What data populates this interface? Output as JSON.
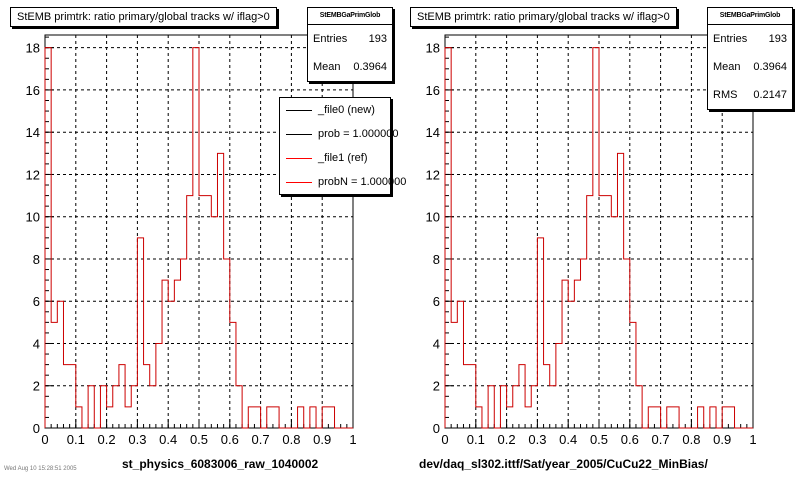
{
  "footer_stamp": "Wed Aug 10 15:28:51 2005",
  "chart_data": [
    {
      "type": "histogram",
      "title": "StEMB primtrk: ratio primary/global tracks w/ iflag>0",
      "xlabel": "st_physics_6083006_raw_1040002",
      "ylabel": "",
      "xlim": [
        0,
        1
      ],
      "ylim": [
        0,
        18.6
      ],
      "grid": true,
      "bin_width": 0.02,
      "x_ticks": [
        "0",
        "0.1",
        "0.2",
        "0.3",
        "0.4",
        "0.5",
        "0.6",
        "0.7",
        "0.8",
        "0.9",
        "1"
      ],
      "y_ticks": [
        "0",
        "2",
        "4",
        "6",
        "8",
        "10",
        "12",
        "14",
        "16",
        "18"
      ],
      "stats": {
        "name": "StEMBGaPrimGlob",
        "entries_label": "Entries",
        "entries": "193",
        "mean_label": "Mean",
        "mean": "0.3964"
      },
      "legend": {
        "placement": "top-right",
        "entries": [
          {
            "label": "_file0 (new)",
            "color": "#000000"
          },
          {
            "label": "prob = 1.000000",
            "color": "#000000"
          },
          {
            "label": "_file1 (ref)",
            "color": "#ff0000"
          },
          {
            "label": "probN = 1.000000",
            "color": "#ff0000"
          }
        ]
      },
      "series": [
        {
          "color": "#cc0000",
          "values": [
            18,
            5,
            6,
            3,
            3,
            1,
            0,
            2,
            0,
            2,
            1,
            2,
            3,
            1,
            2,
            9,
            3,
            2,
            4,
            7,
            6,
            7,
            8,
            11,
            18,
            11,
            11,
            10,
            13,
            8,
            5,
            2,
            0,
            1,
            1,
            0,
            1,
            1,
            0,
            0,
            0,
            1,
            0,
            1,
            0,
            1,
            1,
            0,
            0,
            0
          ]
        }
      ]
    },
    {
      "type": "histogram",
      "title": "StEMB primtrk: ratio primary/global tracks w/ iflag>0",
      "xlabel": "dev/daq_sl302.ittf/Sat/year_2005/CuCu22_MinBias/",
      "ylabel": "",
      "xlim": [
        0,
        1
      ],
      "ylim": [
        0,
        18.6
      ],
      "grid": true,
      "bin_width": 0.02,
      "x_ticks": [
        "0",
        "0.1",
        "0.2",
        "0.3",
        "0.4",
        "0.5",
        "0.6",
        "0.7",
        "0.8",
        "0.9",
        "1"
      ],
      "y_ticks": [
        "0",
        "2",
        "4",
        "6",
        "8",
        "10",
        "12",
        "14",
        "16",
        "18"
      ],
      "stats": {
        "name": "StEMBGaPrimGlob",
        "entries_label": "Entries",
        "entries": "193",
        "mean_label": "Mean",
        "mean": "0.3964",
        "rms_label": "RMS",
        "rms": "0.2147"
      },
      "series": [
        {
          "color": "#cc0000",
          "values": [
            18,
            5,
            6,
            3,
            3,
            1,
            0,
            2,
            0,
            2,
            1,
            2,
            3,
            1,
            2,
            9,
            3,
            2,
            4,
            7,
            6,
            7,
            8,
            11,
            18,
            11,
            11,
            10,
            13,
            8,
            5,
            2,
            0,
            1,
            1,
            0,
            1,
            1,
            0,
            0,
            0,
            1,
            0,
            1,
            0,
            1,
            1,
            0,
            0,
            0
          ]
        }
      ]
    }
  ]
}
